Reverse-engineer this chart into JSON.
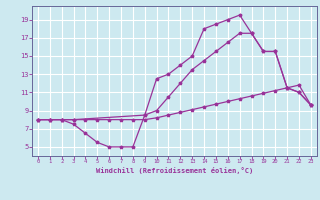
{
  "xlabel": "Windchill (Refroidissement éolien,°C)",
  "bg_color": "#cde9f0",
  "grid_color": "#ffffff",
  "line_color": "#993399",
  "spine_color": "#666699",
  "xlim": [
    -0.5,
    23.5
  ],
  "ylim": [
    4.0,
    20.5
  ],
  "xticks": [
    0,
    1,
    2,
    3,
    4,
    5,
    6,
    7,
    8,
    9,
    10,
    11,
    12,
    13,
    14,
    15,
    16,
    17,
    18,
    19,
    20,
    21,
    22,
    23
  ],
  "yticks": [
    5,
    7,
    9,
    11,
    13,
    15,
    17,
    19
  ],
  "line1_x": [
    0,
    1,
    2,
    3,
    4,
    5,
    6,
    7,
    8,
    9,
    10,
    11,
    12,
    13,
    14,
    15,
    16,
    17,
    18,
    19,
    20,
    21,
    22,
    23
  ],
  "line1_y": [
    8.0,
    8.0,
    8.0,
    8.0,
    8.0,
    8.0,
    8.0,
    8.0,
    8.0,
    8.0,
    8.2,
    8.5,
    8.8,
    9.1,
    9.4,
    9.7,
    10.0,
    10.3,
    10.6,
    10.9,
    11.2,
    11.5,
    11.8,
    9.6
  ],
  "line2_x": [
    0,
    1,
    2,
    3,
    4,
    5,
    6,
    7,
    8,
    9,
    10,
    11,
    12,
    13,
    14,
    15,
    16,
    17,
    18,
    19,
    20,
    21,
    22,
    23
  ],
  "line2_y": [
    8.0,
    8.0,
    8.0,
    7.5,
    6.5,
    5.5,
    5.0,
    5.0,
    5.0,
    8.5,
    12.5,
    13.0,
    14.0,
    15.0,
    18.0,
    18.5,
    19.0,
    19.5,
    17.5,
    15.5,
    15.5,
    11.5,
    11.0,
    9.6
  ],
  "line3_x": [
    0,
    1,
    2,
    3,
    9,
    10,
    11,
    12,
    13,
    14,
    15,
    16,
    17,
    18,
    19,
    20,
    21,
    22,
    23
  ],
  "line3_y": [
    8.0,
    8.0,
    8.0,
    8.0,
    8.5,
    9.0,
    10.5,
    12.0,
    13.5,
    14.5,
    15.5,
    16.5,
    17.5,
    17.5,
    15.5,
    15.5,
    11.5,
    11.0,
    9.6
  ]
}
